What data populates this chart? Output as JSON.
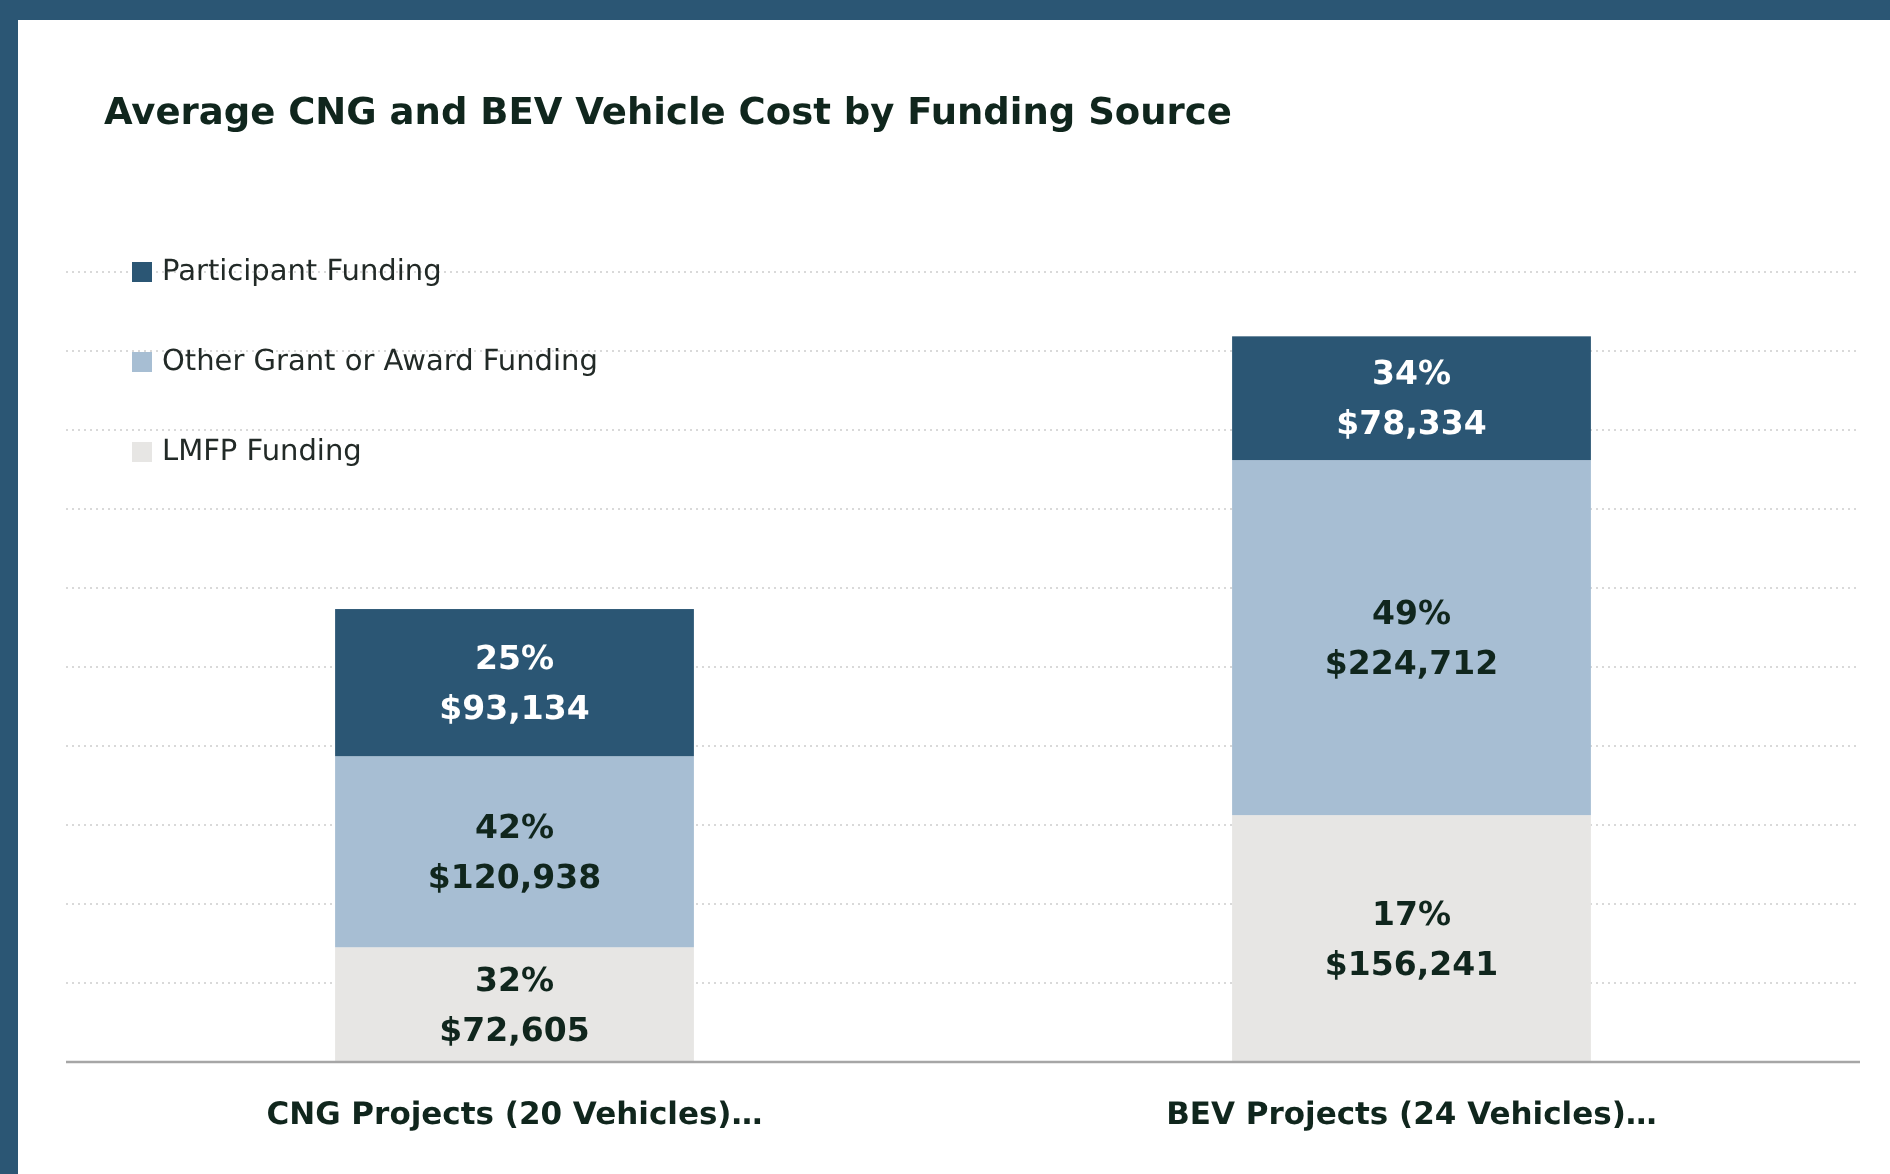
{
  "chart_data": {
    "type": "bar",
    "title": "Average CNG and BEV Vehicle Cost by Funding Source",
    "categories": [
      "CNG Projects (20 Vehicles)…",
      "BEV Projects (24 Vehicles)…"
    ],
    "stacked": true,
    "series": [
      {
        "name": "LMFP Funding",
        "color": "#e7e6e4",
        "values": [
          72605,
          156241
        ],
        "value_labels": [
          "32%\n$72,605",
          "17%\n$156,241"
        ]
      },
      {
        "name": "Other Grant or Award Funding",
        "color": "#a7bed3",
        "values": [
          120938,
          224712
        ],
        "value_labels": [
          "42%\n$120,938",
          "49%\n$224,712"
        ]
      },
      {
        "name": "Participant Funding",
        "color": "#2b5674",
        "values": [
          93134,
          78334
        ],
        "value_labels": [
          "25%\n$93,134",
          "34%\n$78,334"
        ]
      }
    ],
    "ylim": [
      0,
      500000
    ],
    "yticks": [
      {
        "value": 0,
        "label": null
      },
      {
        "value": 50000,
        "label": null
      },
      {
        "value": 100000,
        "label": null
      },
      {
        "value": 150000,
        "label": null
      },
      {
        "value": 200000,
        "label": null
      },
      {
        "value": 250000,
        "label": null
      },
      {
        "value": 300000,
        "label": null
      },
      {
        "value": 350000,
        "label": null
      },
      {
        "value": 400000,
        "label": null
      },
      {
        "value": 450000,
        "label": null
      },
      {
        "value": 500000,
        "label": null
      }
    ],
    "tick_labels": "x",
    "grid": "y",
    "legend": "top left"
  }
}
